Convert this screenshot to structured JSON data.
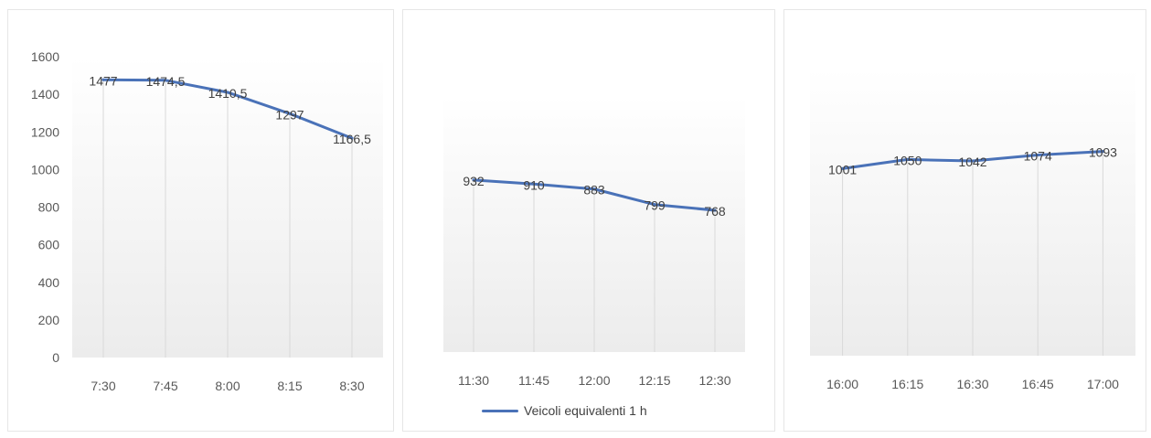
{
  "colors": {
    "line": "#4a72b8",
    "gridline": "#d9d9d9",
    "fill_top": "#ffffff",
    "fill_bottom": "#ececec"
  },
  "legend": {
    "label": "Veicoli equivalenti 1 h"
  },
  "chart_data": [
    {
      "type": "line",
      "categories": [
        "7:30",
        "7:45",
        "8:00",
        "8:15",
        "8:30"
      ],
      "series": [
        {
          "name": "Veicoli equivalenti 1 h",
          "values": [
            1477,
            1474.5,
            1410.5,
            1297,
            1166.5
          ],
          "labels": [
            "1477",
            "1474,5",
            "1410,5",
            "1297",
            "1166,5"
          ]
        }
      ],
      "ylim": [
        0,
        1600
      ],
      "yticks": [
        "0",
        "200",
        "400",
        "600",
        "800",
        "1000",
        "1200",
        "1400",
        "1600"
      ],
      "grid": "vertical"
    },
    {
      "type": "line",
      "categories": [
        "11:30",
        "11:45",
        "12:00",
        "12:15",
        "12:30"
      ],
      "series": [
        {
          "name": "Veicoli equivalenti 1 h",
          "values": [
            932,
            910,
            883,
            799,
            768
          ],
          "labels": [
            "932",
            "910",
            "883",
            "799",
            "768"
          ]
        }
      ],
      "ylim": [
        0,
        1600
      ],
      "grid": "vertical",
      "legend": "bottom"
    },
    {
      "type": "line",
      "categories": [
        "16:00",
        "16:15",
        "16:30",
        "16:45",
        "17:00"
      ],
      "series": [
        {
          "name": "Veicoli equivalenti 1 h",
          "values": [
            1001,
            1050,
            1042,
            1074,
            1093
          ],
          "labels": [
            "1001",
            "1050",
            "1042",
            "1074",
            "1093"
          ]
        }
      ],
      "ylim": [
        0,
        1600
      ],
      "grid": "vertical"
    }
  ]
}
